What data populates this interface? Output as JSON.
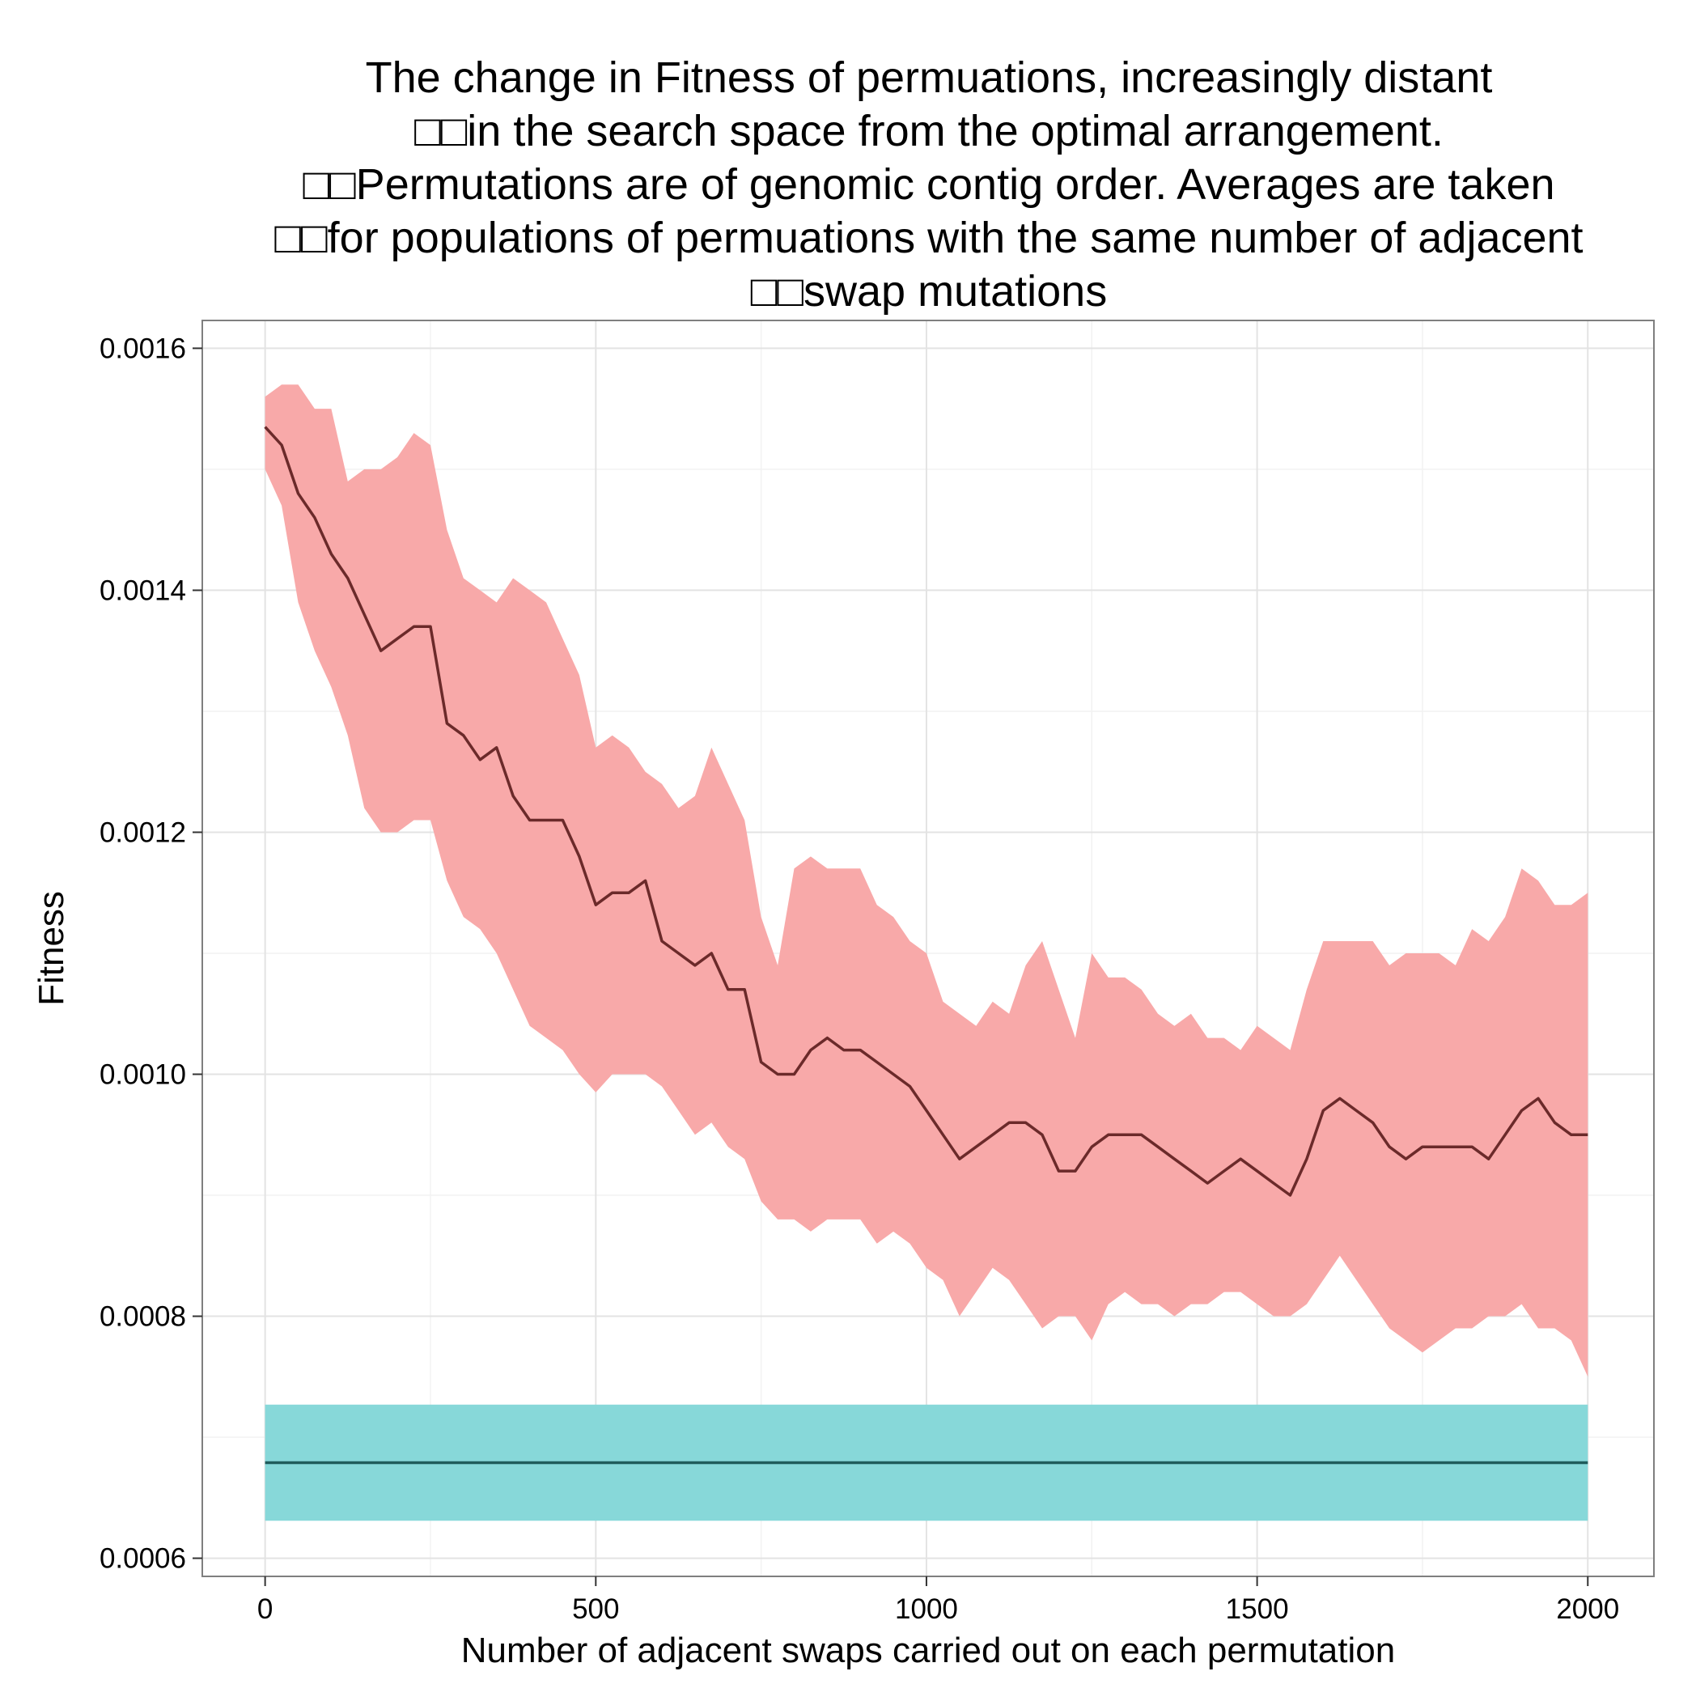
{
  "chart_data": {
    "type": "line",
    "title_lines": [
      "The change in Fitness of permuations, increasingly distant",
      "□□in the search space from the optimal arrangement.",
      "□□Permutations are of genomic contig order. Averages are taken",
      "□□for populations of permuations with the same number of adjacent",
      "□□swap mutations"
    ],
    "xlabel": "Number of adjacent swaps carried out on each permutation",
    "ylabel": "Fitness",
    "xlim": [
      -95,
      2100
    ],
    "ylim": [
      0.000585,
      0.001623
    ],
    "x_ticks": [
      0,
      500,
      1000,
      1500,
      2000
    ],
    "x_tick_labels": [
      "0",
      "500",
      "1000",
      "1500",
      "2000"
    ],
    "y_ticks": [
      0.0006,
      0.0008,
      0.001,
      0.0012,
      0.0014,
      0.0016
    ],
    "y_tick_labels": [
      "0.0006",
      "0.0008",
      "0.0010",
      "0.0012",
      "0.0014",
      "0.0016"
    ],
    "grid": true,
    "legend": "none",
    "series": [
      {
        "color": "#6b2a2a",
        "ribbon_color": "#f8a9a9",
        "x": [
          0,
          25,
          50,
          75,
          100,
          125,
          150,
          175,
          200,
          225,
          250,
          275,
          300,
          325,
          350,
          375,
          400,
          425,
          450,
          475,
          500,
          525,
          550,
          575,
          600,
          625,
          650,
          675,
          700,
          725,
          750,
          775,
          800,
          825,
          850,
          875,
          900,
          925,
          950,
          975,
          1000,
          1025,
          1050,
          1075,
          1100,
          1125,
          1150,
          1175,
          1200,
          1225,
          1250,
          1275,
          1300,
          1325,
          1350,
          1375,
          1400,
          1425,
          1450,
          1475,
          1500,
          1525,
          1550,
          1575,
          1600,
          1625,
          1650,
          1675,
          1700,
          1725,
          1750,
          1775,
          1800,
          1825,
          1850,
          1875,
          1900,
          1925,
          1950,
          1975,
          2000
        ],
        "y": [
          0.001535,
          0.00152,
          0.00148,
          0.00146,
          0.00143,
          0.00141,
          0.00138,
          0.00135,
          0.00136,
          0.00137,
          0.00137,
          0.00129,
          0.00128,
          0.00126,
          0.00127,
          0.00123,
          0.00121,
          0.00121,
          0.00121,
          0.00118,
          0.00114,
          0.00115,
          0.00115,
          0.00116,
          0.00111,
          0.0011,
          0.00109,
          0.0011,
          0.00107,
          0.00107,
          0.00101,
          0.001,
          0.001,
          0.00102,
          0.00103,
          0.00102,
          0.00102,
          0.00101,
          0.001,
          0.00099,
          0.00097,
          0.00095,
          0.00093,
          0.00094,
          0.00095,
          0.00096,
          0.00096,
          0.00095,
          0.00092,
          0.00092,
          0.00094,
          0.00095,
          0.00095,
          0.00095,
          0.00094,
          0.00093,
          0.00092,
          0.00091,
          0.00092,
          0.00093,
          0.00092,
          0.00091,
          0.0009,
          0.00093,
          0.00097,
          0.00098,
          0.00097,
          0.00096,
          0.00094,
          0.00093,
          0.00094,
          0.00094,
          0.00094,
          0.00094,
          0.00093,
          0.00095,
          0.00097,
          0.00098,
          0.00096,
          0.00095,
          0.00095
        ],
        "y_lower": [
          0.0015,
          0.00147,
          0.00139,
          0.00135,
          0.00132,
          0.00128,
          0.00122,
          0.0012,
          0.0012,
          0.00121,
          0.00121,
          0.00116,
          0.00113,
          0.00112,
          0.0011,
          0.00107,
          0.00104,
          0.00103,
          0.00102,
          0.001,
          0.000985,
          0.001,
          0.001,
          0.001,
          0.00099,
          0.00097,
          0.00095,
          0.00096,
          0.00094,
          0.00093,
          0.000895,
          0.00088,
          0.00088,
          0.00087,
          0.00088,
          0.00088,
          0.00088,
          0.00086,
          0.00087,
          0.00086,
          0.00084,
          0.00083,
          0.0008,
          0.00082,
          0.00084,
          0.00083,
          0.00081,
          0.00079,
          0.0008,
          0.0008,
          0.00078,
          0.00081,
          0.00082,
          0.00081,
          0.00081,
          0.0008,
          0.00081,
          0.00081,
          0.00082,
          0.00082,
          0.00081,
          0.0008,
          0.0008,
          0.00081,
          0.00083,
          0.00085,
          0.00083,
          0.00081,
          0.00079,
          0.00078,
          0.00077,
          0.00078,
          0.00079,
          0.00079,
          0.0008,
          0.0008,
          0.00081,
          0.00079,
          0.00079,
          0.00078,
          0.00075
        ],
        "y_upper": [
          0.00156,
          0.00157,
          0.00157,
          0.00155,
          0.00155,
          0.00149,
          0.0015,
          0.0015,
          0.00151,
          0.00153,
          0.00152,
          0.00145,
          0.00141,
          0.0014,
          0.00139,
          0.00141,
          0.0014,
          0.00139,
          0.00136,
          0.00133,
          0.00127,
          0.00128,
          0.00127,
          0.00125,
          0.00124,
          0.00122,
          0.00123,
          0.00127,
          0.00124,
          0.00121,
          0.00113,
          0.00109,
          0.00117,
          0.00118,
          0.00117,
          0.00117,
          0.00117,
          0.00114,
          0.00113,
          0.00111,
          0.0011,
          0.00106,
          0.00105,
          0.00104,
          0.00106,
          0.00105,
          0.00109,
          0.00111,
          0.00107,
          0.00103,
          0.0011,
          0.00108,
          0.00108,
          0.00107,
          0.00105,
          0.00104,
          0.00105,
          0.00103,
          0.00103,
          0.00102,
          0.00104,
          0.00103,
          0.00102,
          0.00107,
          0.00111,
          0.00111,
          0.00111,
          0.00111,
          0.00109,
          0.0011,
          0.0011,
          0.0011,
          0.00109,
          0.00112,
          0.00111,
          0.00113,
          0.00117,
          0.00116,
          0.00114,
          0.00114,
          0.00115
        ]
      },
      {
        "color": "#1f5c5c",
        "ribbon_color": "#87d8d9",
        "x": [
          0,
          2000
        ],
        "y": [
          0.000679,
          0.000679
        ],
        "y_lower": [
          0.000631,
          0.000631
        ],
        "y_upper": [
          0.000727,
          0.000727
        ]
      }
    ]
  }
}
